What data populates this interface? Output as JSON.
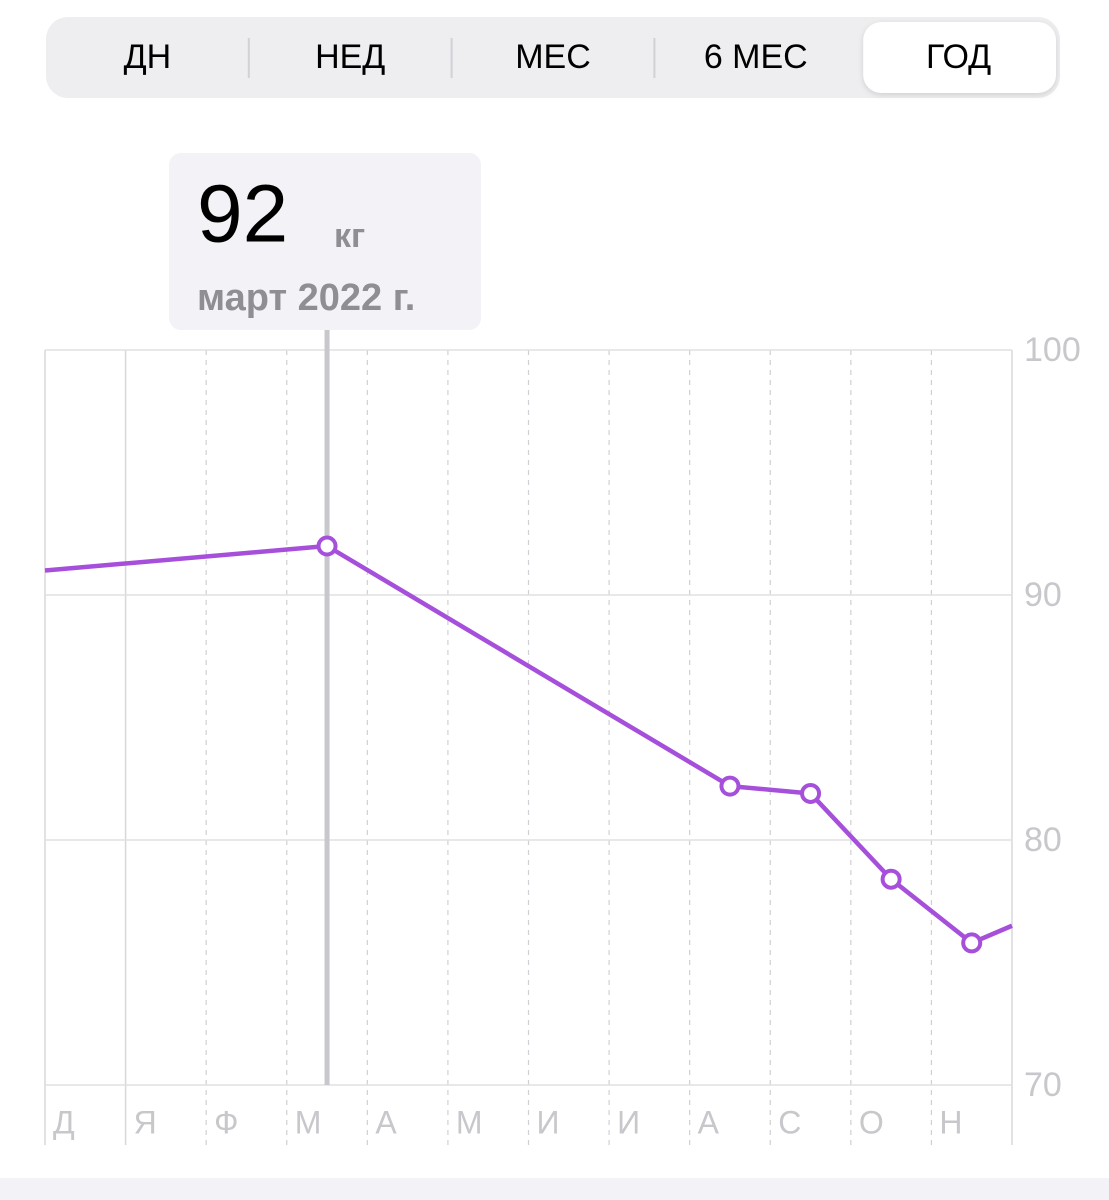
{
  "segments": [
    "ДН",
    "НЕД",
    "МЕС",
    "6 МЕС",
    "ГОД"
  ],
  "selected_segment": 4,
  "tooltip": {
    "value": "92",
    "unit": "кг",
    "date": "март 2022 г."
  },
  "chart_data": {
    "type": "line",
    "categories": [
      "Д",
      "Я",
      "Ф",
      "М",
      "А",
      "М",
      "И",
      "И",
      "А",
      "С",
      "О",
      "Н"
    ],
    "x": [
      0,
      3.5,
      8.5,
      9.5,
      10.5,
      11.5,
      12
    ],
    "values": [
      91.0,
      92,
      82.2,
      81.9,
      78.4,
      75.8,
      76.5
    ],
    "markers": [
      false,
      true,
      true,
      true,
      true,
      true,
      false
    ],
    "highlight_index": 1,
    "color": "#a64fdb",
    "xlim": [
      0,
      12
    ],
    "ylim": [
      70,
      100
    ],
    "yticks": [
      70,
      80,
      90,
      100
    ],
    "grid": true
  }
}
